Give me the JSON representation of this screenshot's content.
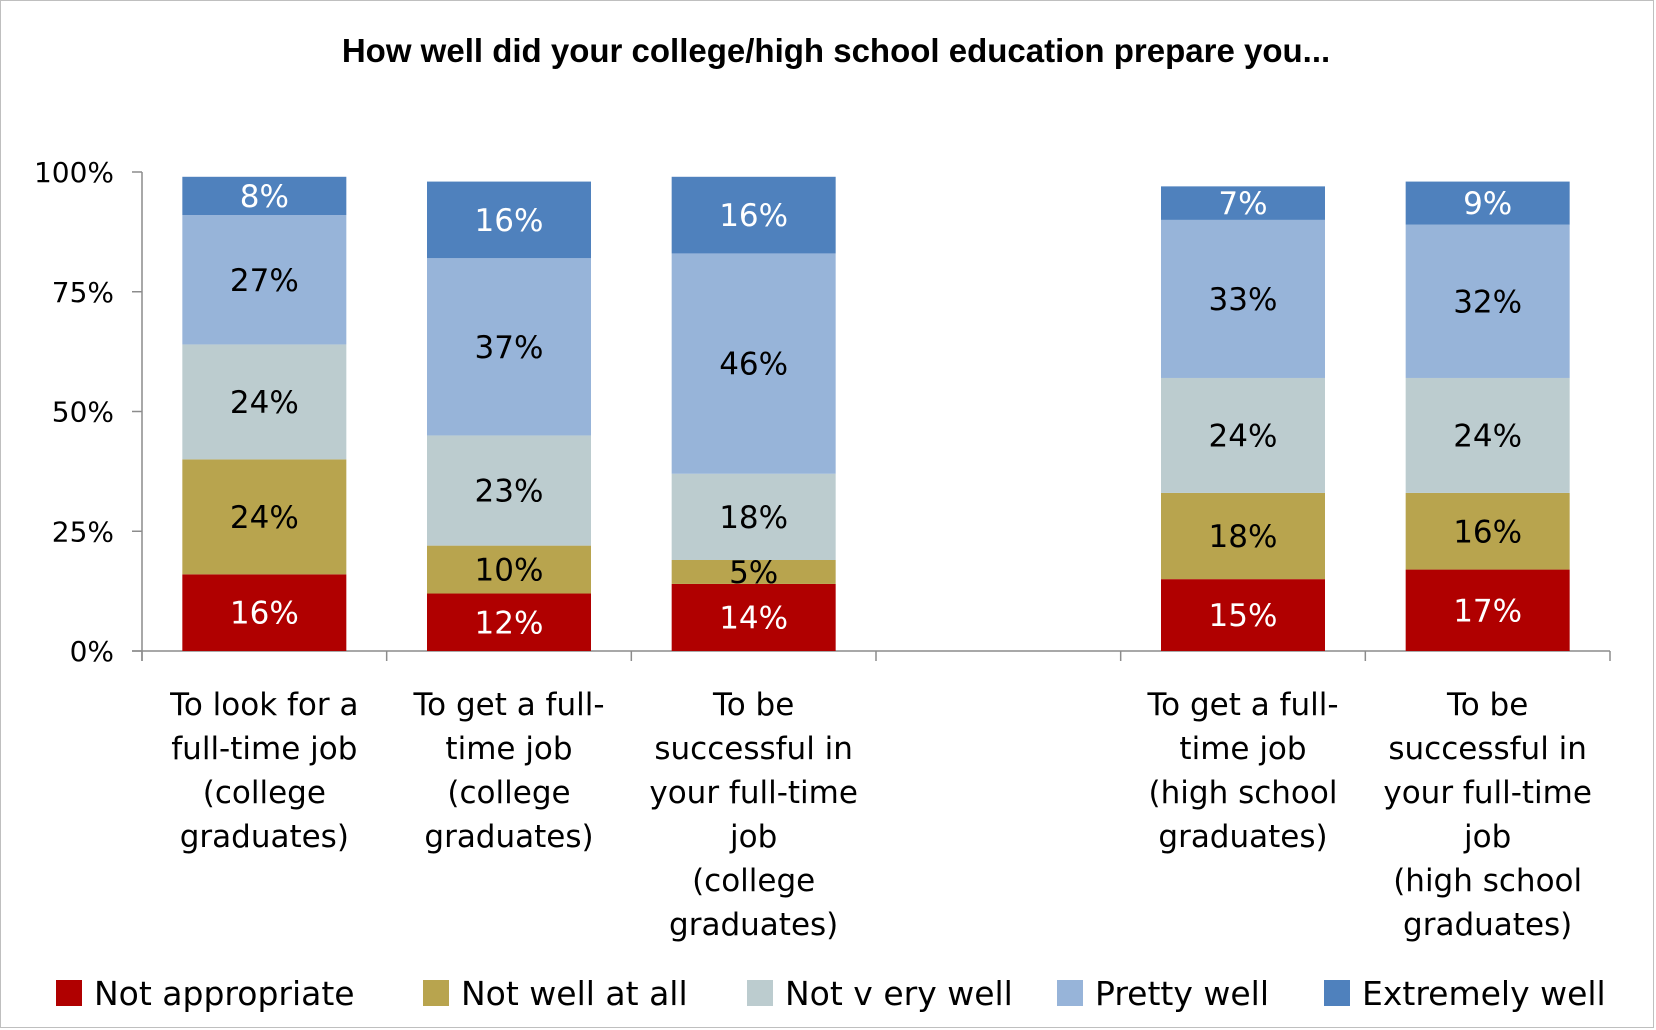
{
  "chart_data": {
    "type": "bar",
    "stacked": true,
    "title": "How well did your college/high school education prepare you...",
    "xlabel": "",
    "ylabel": "",
    "ylim": [
      0,
      100
    ],
    "yticks": [
      "0%",
      "25%",
      "50%",
      "75%",
      "100%"
    ],
    "legend_position": "bottom",
    "grid": false,
    "slot_count": 6,
    "categories": [
      {
        "slot": 0,
        "label_lines": [
          "To look for a",
          "full-time job",
          "(college",
          "graduates)"
        ]
      },
      {
        "slot": 1,
        "label_lines": [
          "To get a full-",
          "time job",
          "(college",
          "graduates)"
        ]
      },
      {
        "slot": 2,
        "label_lines": [
          "To be",
          "successful in",
          "your full-time",
          "job",
          "(college",
          "graduates)"
        ]
      },
      {
        "slot": 4,
        "label_lines": [
          "To get a full-",
          "time job",
          "(high school",
          "graduates)"
        ]
      },
      {
        "slot": 5,
        "label_lines": [
          "To be",
          "successful in",
          "your full-time",
          "job",
          "(high school",
          "graduates)"
        ]
      }
    ],
    "series": [
      {
        "name": "Not appropriate",
        "color": "#b00000",
        "label_color": "#ffffff",
        "values": [
          16,
          12,
          14,
          15,
          17
        ]
      },
      {
        "name": "Not well at all",
        "color": "#b8a44e",
        "label_color": "#000000",
        "values": [
          24,
          10,
          5,
          18,
          16
        ]
      },
      {
        "name": "Not v ery well",
        "color": "#bccccf",
        "label_color": "#000000",
        "values": [
          24,
          23,
          18,
          24,
          24
        ]
      },
      {
        "name": "Pretty well",
        "color": "#97b4d9",
        "label_color": "#000000",
        "values": [
          27,
          37,
          46,
          33,
          32
        ]
      },
      {
        "name": "Extremely well",
        "color": "#4f81bd",
        "label_color": "#ffffff",
        "values": [
          8,
          16,
          16,
          7,
          9
        ]
      }
    ]
  }
}
